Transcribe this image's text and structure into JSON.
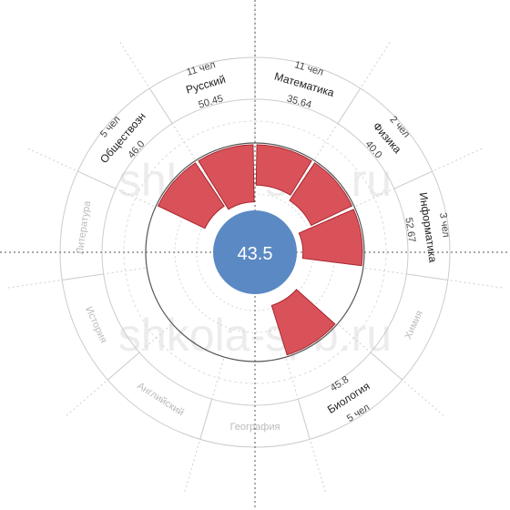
{
  "watermark": "shkola-spb.ru",
  "center_label": "43.5",
  "colors": {
    "bar_fill": "#d9525a",
    "bar_stroke": "#a8262e",
    "center": "#5b89c3",
    "ring_line": "#cccccc",
    "inactive_text": "#bbbbbb",
    "active_text": "#222222",
    "count_text": "#444444",
    "score_text": "#444444"
  },
  "chart_data": {
    "type": "polar-bar",
    "center_value": 43.5,
    "scale_max": 100,
    "subjects": [
      {
        "name": "Математика",
        "count": "11 чел",
        "score": "35.64",
        "value": 35.64,
        "active": true
      },
      {
        "name": "Физика",
        "count": "2 чел",
        "score": "40.0",
        "value": 40.0,
        "active": true
      },
      {
        "name": "Информатика",
        "count": "3 чел",
        "score": "52.67",
        "value": 52.67,
        "active": true
      },
      {
        "name": "Химия",
        "active": false
      },
      {
        "name": "Биология",
        "count": "5 чел",
        "score": "45.8",
        "value": 45.8,
        "active": true
      },
      {
        "name": "География",
        "active": false
      },
      {
        "name": "Английский",
        "active": false
      },
      {
        "name": "История",
        "active": false
      },
      {
        "name": "Литература",
        "active": false
      },
      {
        "name": "Обществозн",
        "count": "5 чел",
        "score": "46.0",
        "value": 46.0,
        "active": true
      },
      {
        "name": "Русский",
        "count": "11 чел",
        "score": "50.45",
        "value": 50.45,
        "active": true
      }
    ]
  }
}
